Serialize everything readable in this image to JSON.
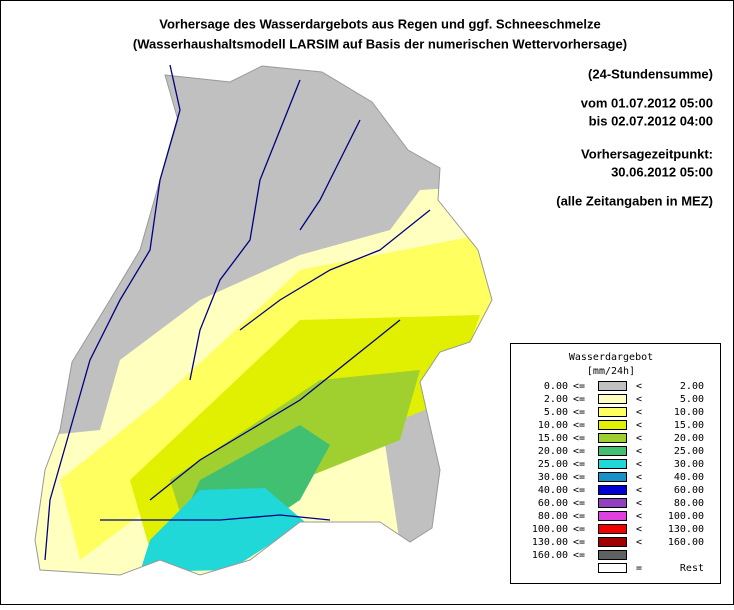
{
  "title": [
    "Vorhersage des Wasserdargebots aus Regen und ggf. Schneeschmelze",
    "(Wasserhaushaltsmodell LARSIM auf Basis der numerischen Wettervorhersage)"
  ],
  "info": [
    "(24-Stundensumme)",
    "vom 01.07.2012 05:00",
    "bis 02.07.2012 04:00",
    "Vorhersagezeitpunkt:",
    "30.06.2012 05:00",
    "(alle Zeitangaben in MEZ)"
  ],
  "legend": {
    "title": "Wasserdargebot",
    "unit": "[mm/24h]",
    "lower_op": "<=",
    "upper_op": "<",
    "rows": [
      {
        "from": "0.00",
        "to": "2.00",
        "color": "#c0c0c0"
      },
      {
        "from": "2.00",
        "to": "5.00",
        "color": "#ffffc0"
      },
      {
        "from": "5.00",
        "to": "10.00",
        "color": "#ffff60"
      },
      {
        "from": "10.00",
        "to": "15.00",
        "color": "#e0f000"
      },
      {
        "from": "15.00",
        "to": "20.00",
        "color": "#a0d030"
      },
      {
        "from": "20.00",
        "to": "25.00",
        "color": "#40c070"
      },
      {
        "from": "25.00",
        "to": "30.00",
        "color": "#20d8d8"
      },
      {
        "from": "30.00",
        "to": "40.00",
        "color": "#1890c8"
      },
      {
        "from": "40.00",
        "to": "60.00",
        "color": "#0000d0"
      },
      {
        "from": "60.00",
        "to": "80.00",
        "color": "#9040c0"
      },
      {
        "from": "80.00",
        "to": "100.00",
        "color": "#e040e0"
      },
      {
        "from": "100.00",
        "to": "130.00",
        "color": "#f00000"
      },
      {
        "from": "130.00",
        "to": "160.00",
        "color": "#a00000"
      },
      {
        "from": "160.00",
        "color": "#606060"
      }
    ],
    "rest": {
      "op": "=",
      "label": "Rest",
      "color": "#ffffff"
    }
  }
}
